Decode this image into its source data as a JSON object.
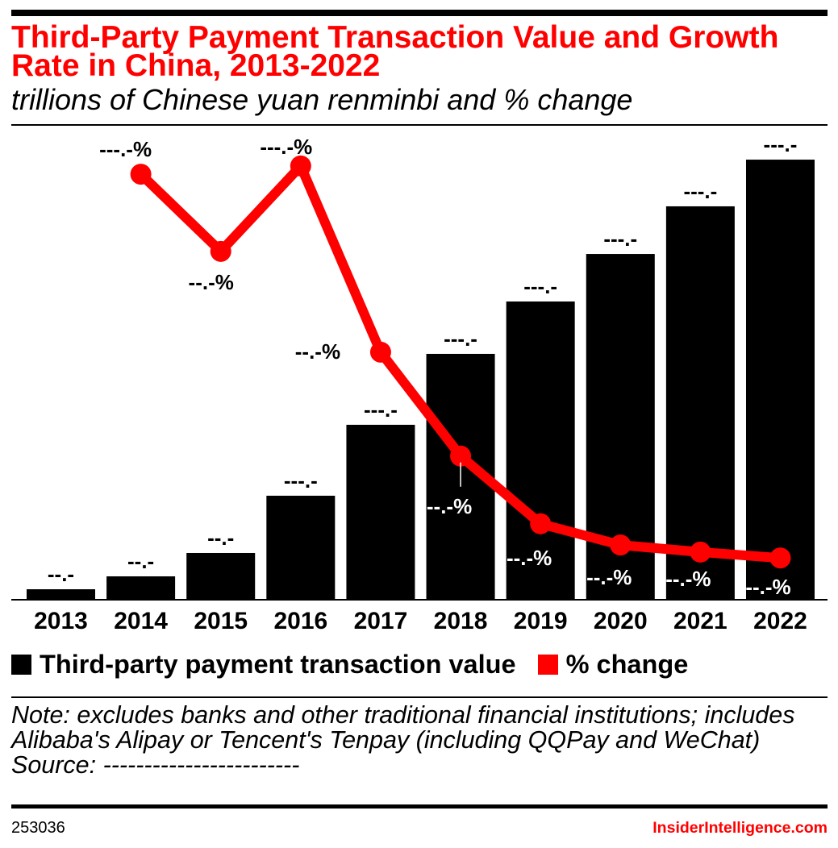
{
  "chart_data": {
    "type": "bar",
    "title": "Third-Party Payment Transaction Value and Growth Rate in China, 2013-2022",
    "subtitle": "trillions of Chinese yuan renminbi and % change",
    "categories": [
      "2013",
      "2014",
      "2015",
      "2016",
      "2017",
      "2018",
      "2019",
      "2020",
      "2021",
      "2022"
    ],
    "series": [
      {
        "name": "Third-party payment transaction value",
        "type": "bar",
        "color": "#000000",
        "values": [
          13.3,
          29.7,
          59.4,
          132.1,
          222.2,
          312.3,
          378.8,
          439.2,
          499.7,
          559.0
        ],
        "labels": [
          "--.-",
          "--.-",
          "--.-",
          "---.-",
          "---.-",
          "---.-",
          "---.-",
          "---.-",
          "---.-",
          "---.-"
        ]
      },
      {
        "name": "% change",
        "type": "line",
        "color": "#ff0000",
        "values": [
          null,
          108.1,
          88.5,
          110.2,
          62.9,
          36.5,
          19.3,
          13.9,
          12.1,
          10.6
        ],
        "labels": [
          null,
          "---.-%",
          "--.-%",
          "---.-%",
          "--.-%",
          "--.-%",
          "--.-%",
          "--.-%",
          "--.-%",
          "--.-%"
        ]
      }
    ],
    "ylim": [
      0,
      600
    ],
    "y2lim": [
      0,
      120
    ],
    "grid": false,
    "legend": "bottom-left"
  },
  "footnotes": {
    "note": "Note: excludes banks and other traditional financial institutions; includes Alibaba's Alipay or Tencent's Tenpay (including QQPay and WeChat)",
    "source": "Source: ------------------------"
  },
  "footer": {
    "chart_id": "253036",
    "brand": "InsiderIntelligence.com"
  },
  "accent_color": "#ff0000"
}
